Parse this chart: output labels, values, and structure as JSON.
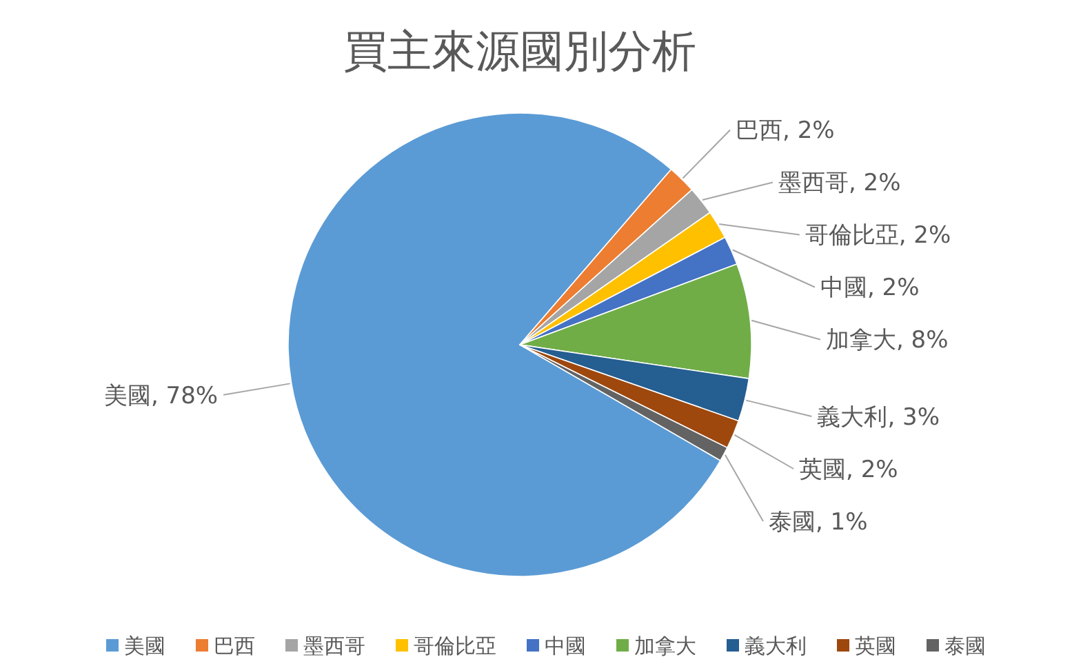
{
  "chart_data": {
    "type": "pie",
    "title": "買主來源國別分析",
    "categories": [
      "美國",
      "巴西",
      "墨西哥",
      "哥倫比亞",
      "中國",
      "加拿大",
      "義大利",
      "英國",
      "泰國"
    ],
    "values": [
      78,
      2,
      2,
      2,
      2,
      8,
      3,
      2,
      1
    ],
    "colors": [
      "#5b9bd5",
      "#ed7d31",
      "#a5a5a5",
      "#ffc000",
      "#4472c4",
      "#70ad47",
      "#255e91",
      "#9e480e",
      "#636363"
    ],
    "value_labels": [
      "美國, 78%",
      "巴西, 2%",
      "墨西哥, 2%",
      "哥倫比亞, 2%",
      "中國, 2%",
      "加拿大, 8%",
      "義大利, 3%",
      "英國, 2%",
      "泰國, 1%"
    ],
    "legend": "bottom"
  }
}
